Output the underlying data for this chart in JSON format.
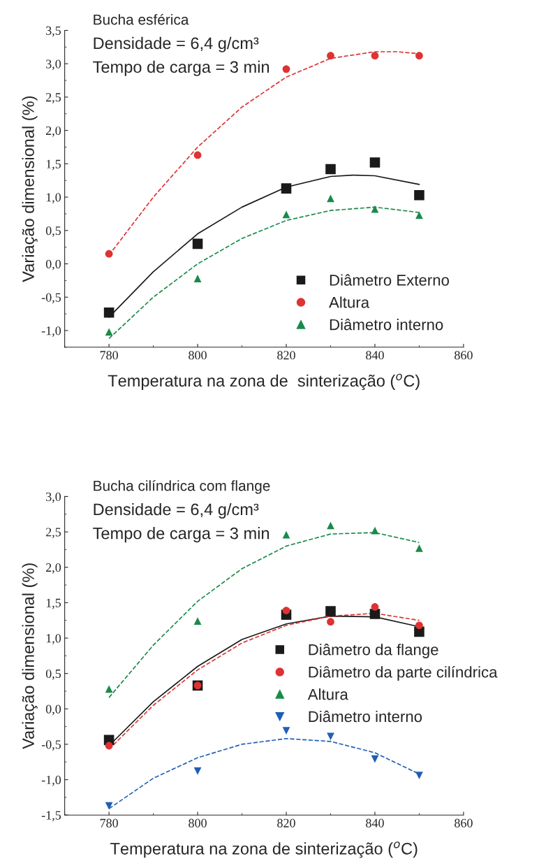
{
  "chart_data": [
    {
      "type": "scatter",
      "xlabel": "Temperatura na zona de  sinterização ($^{o}$C)",
      "ylabel": "Variação dimensional (%)",
      "annotations": [
        "Bucha esférica",
        "Densidade = 6,4 g/cm³",
        "Tempo de carga = 3 min"
      ],
      "x": [
        780,
        800,
        820,
        830,
        840,
        850
      ],
      "series": [
        {
          "name": "Diâmetro Externo",
          "color": "#1a1a1a",
          "marker": "square",
          "values": [
            -0.73,
            0.3,
            1.13,
            1.42,
            1.52,
            1.03
          ]
        },
        {
          "name": "Altura",
          "color": "#dd3333",
          "marker": "circle",
          "values": [
            0.15,
            1.63,
            2.92,
            3.12,
            3.12,
            3.12
          ]
        },
        {
          "name": "Diâmetro interno",
          "color": "#1a8a4a",
          "marker": "triangle",
          "values": [
            -1.02,
            -0.22,
            0.74,
            0.98,
            0.82,
            0.73
          ]
        },
        {
          "type": "line",
          "color": "#1a1a1a",
          "line_style": "solid",
          "x": [
            780,
            790,
            800,
            810,
            820,
            830,
            835,
            840,
            850
          ],
          "values": [
            -0.8,
            -0.12,
            0.45,
            0.85,
            1.15,
            1.31,
            1.33,
            1.32,
            1.19
          ]
        },
        {
          "type": "line",
          "color": "#dd3333",
          "line_style": "dashed",
          "x": [
            780,
            790,
            800,
            810,
            820,
            830,
            840,
            845,
            850
          ],
          "values": [
            0.13,
            1.0,
            1.75,
            2.35,
            2.8,
            3.08,
            3.18,
            3.18,
            3.15
          ]
        },
        {
          "type": "line",
          "color": "#1a8a4a",
          "line_style": "dashed",
          "x": [
            780,
            790,
            800,
            810,
            820,
            830,
            840,
            850
          ],
          "values": [
            -1.12,
            -0.5,
            0.0,
            0.38,
            0.65,
            0.8,
            0.85,
            0.77
          ]
        }
      ],
      "xlim": [
        770,
        860
      ],
      "xticks": [
        780,
        800,
        820,
        840,
        860
      ],
      "ylim": [
        -1.25,
        3.5
      ],
      "yticks": [
        {
          "value": -1.0,
          "label": "-1,0"
        },
        {
          "value": -0.5,
          "label": "-0,5"
        },
        {
          "value": 0.0,
          "label": "0,0"
        },
        {
          "value": 0.5,
          "label": "0,5"
        },
        {
          "value": 1.0,
          "label": "1,0"
        },
        {
          "value": 1.5,
          "label": "1,5"
        },
        {
          "value": 2.0,
          "label": "2,0"
        },
        {
          "value": 2.5,
          "label": "2,5"
        },
        {
          "value": 3.0,
          "label": "3,0"
        },
        {
          "value": 3.5,
          "label": "3,5"
        }
      ],
      "legend": "lower right",
      "grid": false
    },
    {
      "type": "scatter",
      "xlabel": "Temperatura na zona de sinterização ($^{o}$C)",
      "ylabel": "Variação dimensional (%)",
      "annotations": [
        "Bucha cilíndrica com flange",
        "Densidade = 6,4 g/cm³",
        "Tempo de carga = 3 min"
      ],
      "x": [
        780,
        800,
        820,
        830,
        840,
        850
      ],
      "series": [
        {
          "name": "Diâmetro da flange",
          "color": "#1a1a1a",
          "marker": "square",
          "values": [
            -0.44,
            0.33,
            1.33,
            1.38,
            1.34,
            1.09
          ]
        },
        {
          "name": "Diâmetro da parte cilíndrica",
          "color": "#dd3333",
          "marker": "circle",
          "values": [
            -0.52,
            0.33,
            1.39,
            1.23,
            1.44,
            1.18
          ]
        },
        {
          "name": "Altura",
          "color": "#1a8a4a",
          "marker": "triangle",
          "values": [
            0.28,
            1.24,
            2.46,
            2.59,
            2.52,
            2.27
          ]
        },
        {
          "name": "Diâmetro interno",
          "color": "#1f5fb4",
          "marker": "triangle_down",
          "values": [
            -1.37,
            -0.88,
            -0.31,
            -0.39,
            -0.71,
            -0.94
          ]
        },
        {
          "type": "line",
          "color": "#1a1a1a",
          "line_style": "solid",
          "x": [
            780,
            790,
            800,
            810,
            820,
            830,
            840,
            850
          ],
          "values": [
            -0.52,
            0.1,
            0.6,
            0.98,
            1.2,
            1.31,
            1.3,
            1.16
          ]
        },
        {
          "type": "line",
          "color": "#dd3333",
          "line_style": "dashed",
          "x": [
            780,
            790,
            800,
            810,
            820,
            830,
            840,
            850
          ],
          "values": [
            -0.57,
            0.05,
            0.55,
            0.93,
            1.18,
            1.31,
            1.35,
            1.25
          ]
        },
        {
          "type": "line",
          "color": "#1a8a4a",
          "line_style": "dashed",
          "x": [
            780,
            790,
            800,
            810,
            820,
            830,
            840,
            850
          ],
          "values": [
            0.16,
            0.9,
            1.52,
            1.98,
            2.3,
            2.47,
            2.49,
            2.35
          ]
        },
        {
          "type": "line",
          "color": "#1f5fb4",
          "line_style": "dashed",
          "x": [
            780,
            790,
            800,
            810,
            820,
            830,
            840,
            850
          ],
          "values": [
            -1.41,
            -0.98,
            -0.69,
            -0.5,
            -0.42,
            -0.46,
            -0.62,
            -0.92
          ]
        }
      ],
      "xlim": [
        770,
        860
      ],
      "xticks": [
        780,
        800,
        820,
        840,
        860
      ],
      "ylim": [
        -1.5,
        3.0
      ],
      "yticks": [
        {
          "value": -1.5,
          "label": "-1,5"
        },
        {
          "value": -1.0,
          "label": "-1,0"
        },
        {
          "value": -0.5,
          "label": "-0,5"
        },
        {
          "value": 0.0,
          "label": "0,0"
        },
        {
          "value": 0.5,
          "label": "0,5"
        },
        {
          "value": 1.0,
          "label": "1,0"
        },
        {
          "value": 1.5,
          "label": "1,5"
        },
        {
          "value": 2.0,
          "label": "2,0"
        },
        {
          "value": 2.5,
          "label": "2,5"
        },
        {
          "value": 3.0,
          "label": "3,0"
        }
      ],
      "legend": "center right",
      "grid": false
    }
  ]
}
